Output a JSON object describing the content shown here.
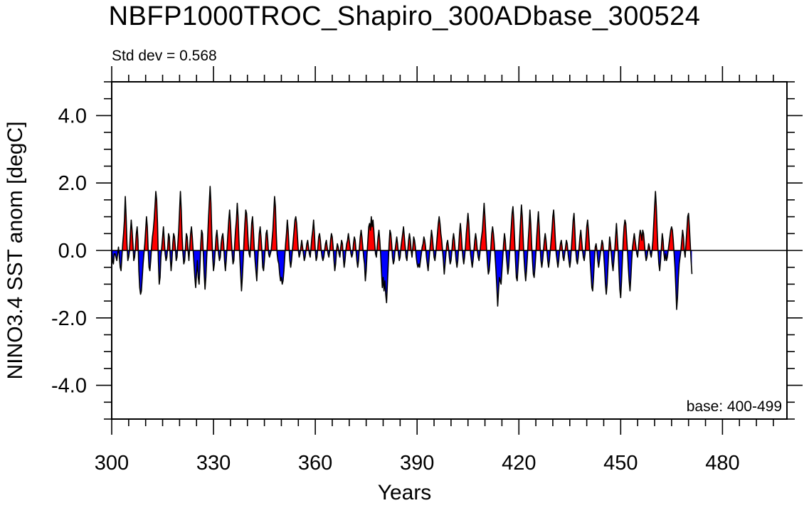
{
  "chart_data": {
    "type": "area",
    "title": "NBFP1000TROC_Shapiro_300ADbase_300524",
    "left_annotation": "Std dev = 0.568",
    "right_annotation": "base: 400-499",
    "xlabel": "Years",
    "ylabel": "NINO3.4 SST anom [degC]",
    "xlim": [
      300,
      499
    ],
    "ylim": [
      -5,
      5
    ],
    "x_ticks": [
      300,
      330,
      360,
      390,
      420,
      450,
      480
    ],
    "x_tick_labels": [
      "300",
      "330",
      "360",
      "390",
      "420",
      "450",
      "480"
    ],
    "y_ticks": [
      4,
      2,
      0,
      -2,
      -4
    ],
    "y_tick_labels": [
      "4.0",
      "2.0",
      "0.0",
      "-2.0",
      "-4.0"
    ],
    "positive_color": "#ff0000",
    "negative_color": "#0000ff",
    "start_year": 300,
    "step_years": 0.25,
    "series": [
      {
        "name": "NINO3.4 SST anomaly",
        "values": [
          0.0,
          -0.3,
          -0.4,
          -0.1,
          -0.1,
          -0.2,
          -0.3,
          -0.1,
          0.1,
          -0.2,
          -0.5,
          -0.6,
          -0.2,
          0.2,
          0.5,
          0.9,
          1.6,
          1.0,
          0.2,
          -0.3,
          -0.2,
          0.0,
          0.5,
          0.9,
          0.6,
          0.2,
          -0.3,
          -0.2,
          0.1,
          0.5,
          0.7,
          0.3,
          -0.6,
          -1.1,
          -1.3,
          -1.2,
          -0.8,
          -0.4,
          -0.1,
          0.2,
          0.6,
          1.0,
          0.7,
          0.0,
          -0.5,
          -0.6,
          -0.3,
          0.1,
          0.4,
          0.6,
          0.9,
          1.3,
          1.75,
          1.5,
          0.8,
          -0.3,
          -1.0,
          -0.8,
          -0.2,
          0.1,
          0.4,
          0.7,
          0.3,
          -0.1,
          -0.3,
          -0.2,
          0.1,
          0.5,
          0.4,
          -0.2,
          -0.6,
          -0.3,
          0.2,
          0.5,
          0.4,
          0.1,
          -0.3,
          -0.2,
          0.2,
          0.6,
          1.2,
          1.75,
          1.2,
          0.4,
          -0.1,
          -0.4,
          -0.3,
          0.1,
          0.5,
          0.4,
          0.0,
          -0.3,
          0.1,
          0.5,
          0.7,
          0.4,
          0.0,
          -0.4,
          -0.8,
          -1.1,
          -0.7,
          -0.3,
          -0.8,
          -1.0,
          -0.5,
          0.2,
          0.6,
          0.5,
          -0.1,
          -0.7,
          -1.15,
          -0.8,
          -0.2,
          0.3,
          0.9,
          1.4,
          1.9,
          1.4,
          0.5,
          -0.2,
          -0.6,
          -0.4,
          0.0,
          0.4,
          0.6,
          0.3,
          -0.1,
          -0.3,
          -0.2,
          0.2,
          0.4,
          0.5,
          0.2,
          -0.3,
          -0.6,
          -0.3,
          0.1,
          0.5,
          0.9,
          1.2,
          0.8,
          0.3,
          -0.1,
          -0.4,
          -0.3,
          0.2,
          0.6,
          0.9,
          1.4,
          1.0,
          0.3,
          -0.2,
          -0.7,
          -1.2,
          -0.8,
          -0.3,
          0.3,
          0.8,
          1.2,
          1.1,
          0.7,
          0.2,
          -0.1,
          -0.2,
          0.3,
          0.8,
          1.0,
          0.6,
          0.1,
          -0.3,
          -0.6,
          -0.9,
          -0.4,
          0.1,
          0.5,
          0.7,
          0.4,
          0.0,
          -0.5,
          -0.6,
          -0.3,
          0.1,
          0.5,
          0.6,
          0.3,
          -0.1,
          -0.2,
          -0.1,
          0.0,
          0.3,
          0.6,
          1.1,
          1.6,
          1.3,
          0.5,
          -0.1,
          -0.3,
          -0.4,
          -0.7,
          -0.9,
          -0.8,
          -1.0,
          -0.9,
          -0.6,
          -0.2,
          0.2,
          0.5,
          0.9,
          0.6,
          0.1,
          -0.3,
          -0.5,
          -0.3,
          0.0,
          0.3,
          0.6,
          0.9,
          1.0,
          0.8,
          0.4,
          0.0,
          -0.2,
          -0.1,
          0.1,
          0.3,
          0.1,
          -0.1,
          -0.3,
          -0.2,
          0.0,
          0.2,
          0.3,
          0.1,
          -0.1,
          -0.2,
          0.1,
          0.4,
          0.6,
          0.9,
          0.5,
          0.0,
          -0.3,
          -0.2,
          0.1,
          0.4,
          0.5,
          0.3,
          0.0,
          -0.2,
          -0.3,
          -0.2,
          0.0,
          0.2,
          0.3,
          0.1,
          -0.1,
          -0.2,
          0.0,
          0.3,
          0.5,
          0.4,
          0.1,
          -0.3,
          -0.6,
          -0.4,
          0.0,
          0.2,
          0.1,
          -0.1,
          -0.2,
          0.1,
          0.3,
          0.2,
          -0.2,
          -0.5,
          -0.3,
          0.0,
          0.2,
          0.3,
          0.5,
          0.3,
          0.1,
          -0.1,
          -0.2,
          -0.1,
          0.2,
          0.4,
          0.3,
          0.0,
          -0.3,
          -0.5,
          -0.3,
          0.1,
          0.4,
          0.6,
          0.4,
          0.1,
          -0.2,
          -0.4,
          -0.9,
          -0.6,
          -0.1,
          0.3,
          0.7,
          0.8,
          0.6,
          1.0,
          0.7,
          0.9,
          0.6,
          0.2,
          -0.1,
          -0.2,
          0.1,
          0.4,
          0.6,
          0.3,
          -0.1,
          -0.6,
          -1.1,
          -0.8,
          -1.2,
          -0.9,
          -1.3,
          -1.55,
          -1.0,
          -0.4,
          0.2,
          0.6,
          0.5,
          0.2,
          -0.2,
          -0.4,
          -0.3,
          0.0,
          0.2,
          0.4,
          0.2,
          -0.1,
          -0.3,
          -0.2,
          0.1,
          0.3,
          0.5,
          0.7,
          0.4,
          0.1,
          -0.2,
          -0.3,
          0.0,
          0.3,
          0.5,
          0.3,
          0.0,
          -0.2,
          0.1,
          0.4,
          0.3,
          0.1,
          -0.2,
          -0.4,
          -0.5,
          -0.4,
          -0.5,
          -0.3,
          -0.1,
          0.1,
          0.2,
          0.4,
          0.3,
          0.1,
          -0.2,
          -0.4,
          -0.6,
          -0.3,
          0.0,
          0.3,
          0.6,
          0.4,
          0.1,
          -0.2,
          -0.3,
          -0.1,
          0.2,
          0.5,
          0.8,
          1.0,
          0.8,
          0.5,
          0.3,
          0.0,
          -0.3,
          -0.7,
          -0.4,
          -0.1,
          0.2,
          0.3,
          0.1,
          -0.2,
          -0.4,
          -0.3,
          0.0,
          0.3,
          0.5,
          0.3,
          0.0,
          -0.3,
          -0.5,
          -0.3,
          0.1,
          0.5,
          0.8,
          0.5,
          0.1,
          -0.2,
          -0.4,
          -0.2,
          0.1,
          0.5,
          0.8,
          1.1,
          0.8,
          0.3,
          -0.1,
          -0.3,
          -0.5,
          -0.3,
          0.0,
          0.3,
          0.5,
          0.3,
          0.0,
          -0.2,
          -0.3,
          -0.1,
          0.2,
          0.4,
          0.6,
          1.0,
          1.4,
          1.0,
          0.5,
          0.0,
          -0.4,
          -0.7,
          -0.6,
          -0.3,
          0.1,
          0.5,
          0.7,
          0.5,
          0.2,
          -0.2,
          -0.6,
          -1.1,
          -1.65,
          -1.2,
          -0.8,
          -0.9,
          -1.0,
          -0.6,
          -0.2,
          0.2,
          0.5,
          0.3,
          -0.1,
          -0.4,
          -0.7,
          -0.5,
          -0.1,
          0.3,
          0.7,
          1.1,
          1.3,
          0.9,
          0.3,
          -0.3,
          -0.8,
          -0.9,
          -0.5,
          -0.1,
          0.4,
          0.9,
          1.35,
          1.0,
          0.4,
          -0.2,
          -0.6,
          -0.9,
          -0.6,
          -0.2,
          0.3,
          0.7,
          1.2,
          0.8,
          0.2,
          -0.3,
          -0.7,
          -0.8,
          -0.5,
          -0.1,
          0.4,
          0.8,
          1.15,
          0.7,
          0.1,
          -0.3,
          -0.5,
          -0.3,
          0.0,
          0.3,
          0.5,
          0.3,
          0.0,
          -0.3,
          -0.5,
          -0.3,
          0.0,
          0.3,
          0.6,
          1.0,
          1.2,
          0.8,
          0.3,
          -0.1,
          -0.3,
          -0.5,
          -0.3,
          0.0,
          0.2,
          0.3,
          0.1,
          -0.2,
          -0.3,
          -0.1,
          0.1,
          0.3,
          0.2,
          -0.1,
          -0.3,
          -0.5,
          -0.3,
          0.1,
          0.5,
          0.9,
          1.1,
          0.6,
          0.0,
          -0.3,
          -0.4,
          -0.2,
          0.1,
          0.4,
          0.6,
          0.3,
          0.0,
          -0.2,
          -0.3,
          -0.1,
          0.3,
          0.7,
          0.9,
          0.6,
          0.2,
          -0.3,
          -0.7,
          -1.1,
          -1.2,
          -0.8,
          -0.3,
          0.1,
          0.2,
          0.0,
          -0.3,
          -0.5,
          -0.3,
          -0.1,
          0.1,
          0.3,
          0.2,
          -0.1,
          -0.5,
          -1.0,
          -1.3,
          -1.0,
          -0.5,
          0.0,
          0.4,
          0.2,
          -0.1,
          -0.4,
          -0.6,
          -0.3,
          0.0,
          0.4,
          0.8,
          0.4,
          0.0,
          -0.6,
          -1.15,
          -1.4,
          -0.9,
          -0.3,
          0.3,
          0.7,
          0.9,
          0.8,
          0.4,
          0.0,
          -0.5,
          -0.9,
          -1.2,
          -0.8,
          -0.3,
          0.1,
          0.3,
          0.5,
          0.3,
          0.1,
          -0.1,
          -0.2,
          0.1,
          0.4,
          0.6,
          0.5,
          0.3,
          0.6,
          0.5,
          0.2,
          -0.1,
          -0.3,
          -0.2,
          0.0,
          0.2,
          0.1,
          -0.1,
          -0.2,
          0.0,
          0.3,
          0.8,
          1.3,
          1.75,
          1.3,
          0.6,
          0.0,
          -0.4,
          -0.6,
          -0.3,
          0.1,
          0.5,
          0.3,
          -0.1,
          -0.3,
          -0.1,
          -0.3,
          -0.2,
          0.0,
          0.2,
          0.4,
          0.6,
          0.7,
          0.6,
          0.3,
          -0.1,
          -0.5,
          -1.1,
          -1.75,
          -1.4,
          -0.8,
          -0.4,
          -0.2,
          0.0,
          0.3,
          0.6,
          0.4,
          0.0,
          -0.2,
          0.2,
          0.6,
          1.0,
          1.1,
          0.7,
          0.2,
          -0.3,
          -0.7
        ]
      }
    ]
  }
}
